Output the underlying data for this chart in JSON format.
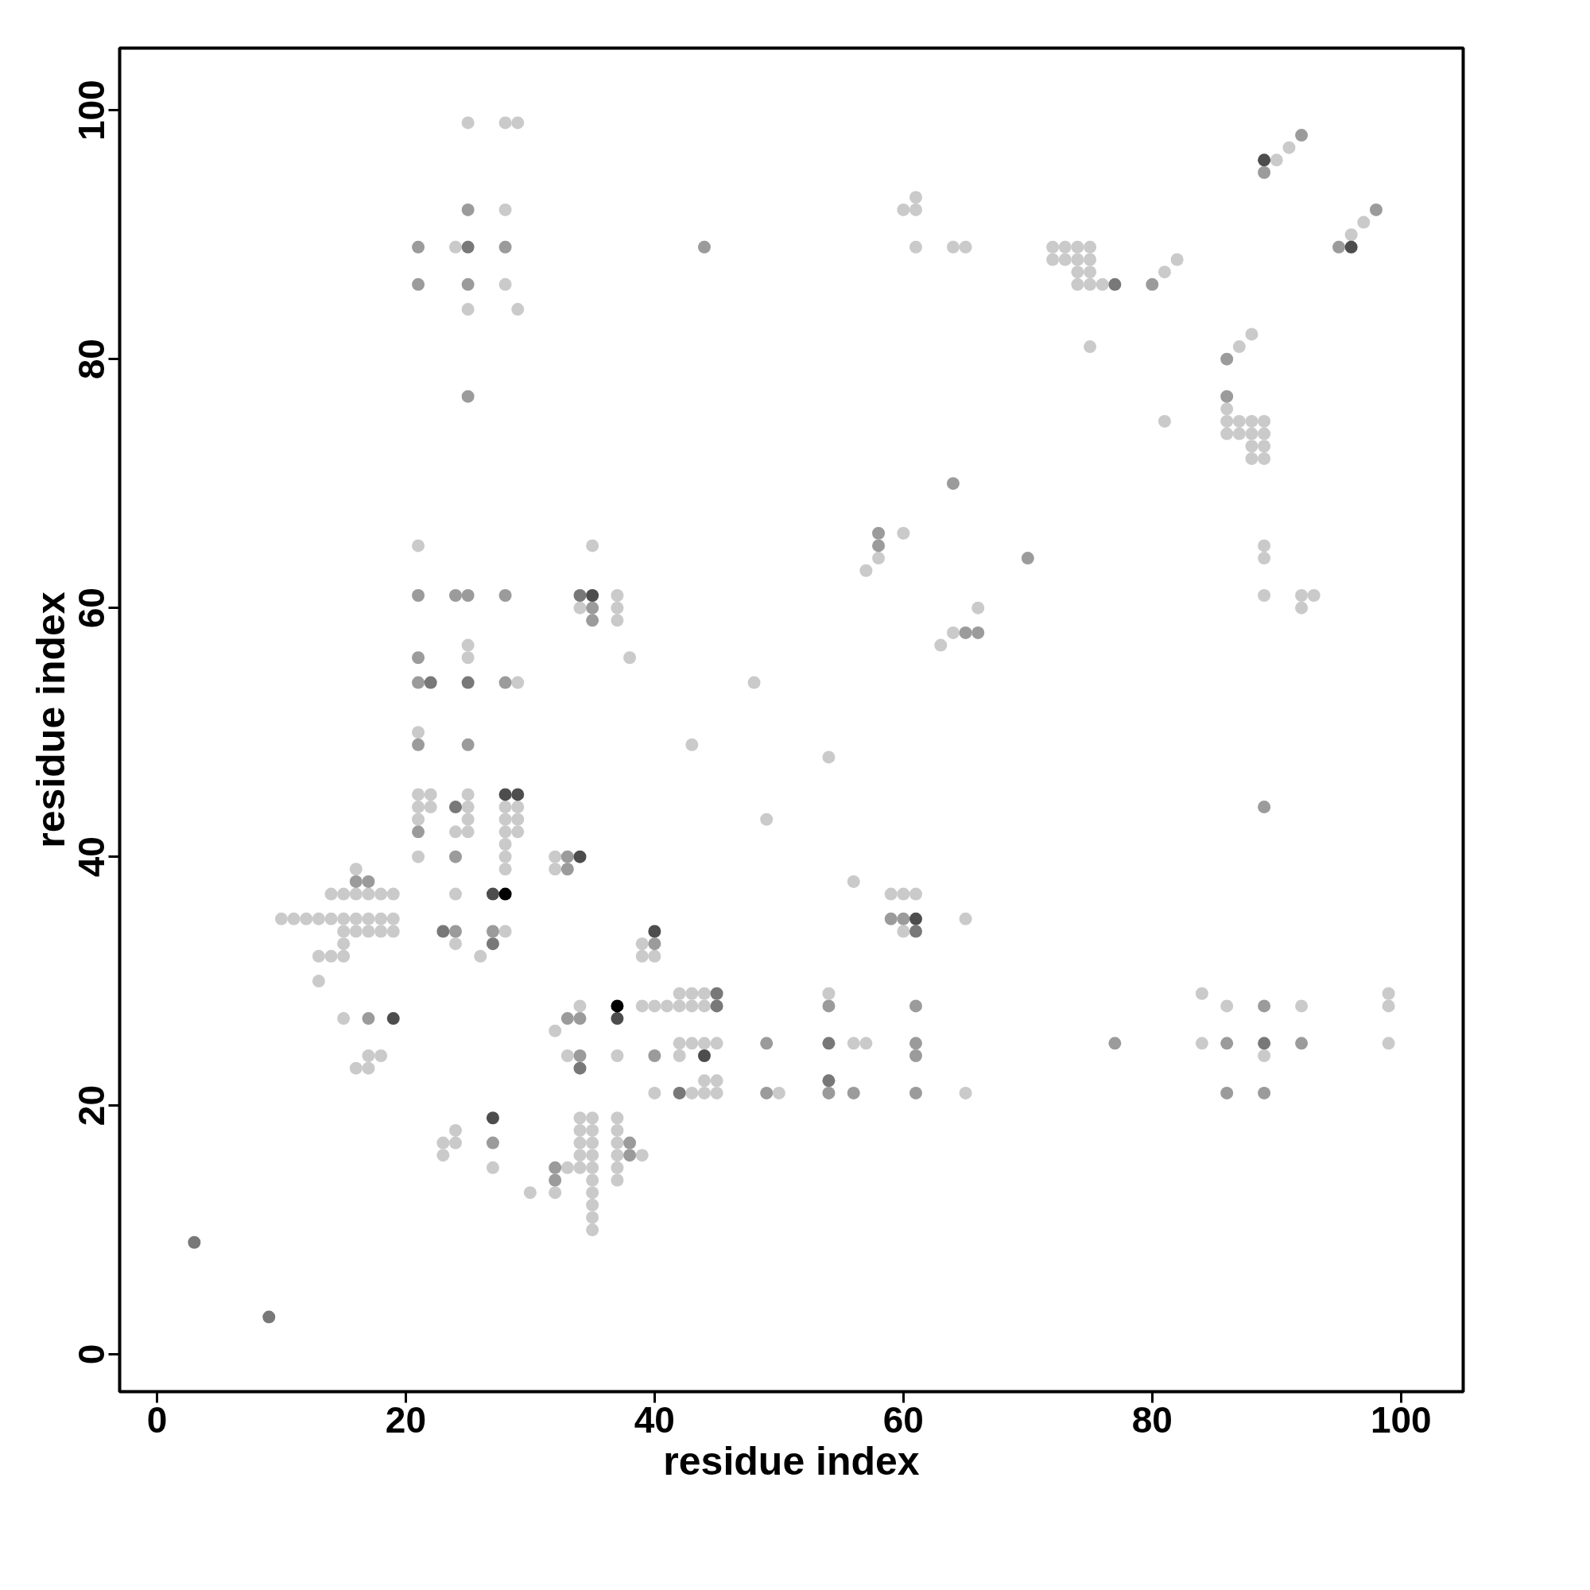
{
  "chart_data": {
    "type": "scatter",
    "xlabel": "residue index",
    "ylabel": "residue index",
    "xlim": [
      -3,
      105
    ],
    "ylim": [
      -3,
      105
    ],
    "xticks": [
      0,
      20,
      40,
      60,
      80,
      100
    ],
    "yticks": [
      0,
      20,
      40,
      60,
      80,
      100
    ],
    "grid": false,
    "marker": "circle",
    "series": [
      {
        "color": "#cacaca",
        "x": [
          25,
          28,
          29,
          28,
          24,
          28,
          25,
          29,
          60,
          61,
          61,
          61,
          64,
          65,
          72,
          73,
          74,
          75,
          72,
          73,
          74,
          75,
          74,
          75,
          74,
          75,
          76,
          81,
          82,
          75,
          90,
          91,
          96,
          97,
          87,
          88,
          81,
          86,
          86,
          87,
          88,
          89,
          86,
          87,
          88,
          89,
          88,
          89,
          88,
          89,
          89,
          89,
          89,
          92,
          93,
          92,
          60,
          58,
          57,
          66,
          64,
          63,
          48,
          43,
          54,
          49,
          21,
          25,
          25,
          29,
          34,
          35,
          37,
          37,
          37,
          38,
          21,
          21,
          22,
          25,
          21,
          22,
          25,
          28,
          29,
          21,
          25,
          28,
          29,
          24,
          25,
          28,
          29,
          28,
          21,
          28,
          32,
          28,
          32,
          16,
          14,
          15,
          16,
          17,
          18,
          19,
          24,
          10,
          11,
          12,
          13,
          14,
          15,
          16,
          17,
          18,
          19,
          15,
          16,
          17,
          18,
          19,
          28,
          15,
          24,
          13,
          14,
          15,
          26,
          13,
          15,
          32,
          17,
          18,
          16,
          17,
          34,
          33,
          24,
          23,
          24,
          23,
          27,
          30,
          33,
          32,
          56,
          59,
          60,
          61,
          65,
          60,
          39,
          39,
          40,
          42,
          43,
          44,
          54,
          39,
          40,
          41,
          42,
          43,
          44,
          42,
          43,
          44,
          45,
          56,
          57,
          37,
          42,
          44,
          45,
          40,
          43,
          44,
          45,
          50,
          65,
          34,
          35,
          37,
          34,
          35,
          37,
          34,
          35,
          37,
          34,
          35,
          37,
          39,
          34,
          35,
          37,
          35,
          37,
          35,
          35,
          35,
          35,
          84,
          86,
          92,
          99,
          99,
          84,
          99,
          89
        ],
        "values": [
          99,
          99,
          99,
          92,
          89,
          86,
          84,
          84,
          92,
          93,
          92,
          89,
          89,
          89,
          89,
          89,
          89,
          89,
          88,
          88,
          88,
          88,
          87,
          87,
          86,
          86,
          86,
          87,
          88,
          81,
          96,
          97,
          90,
          91,
          81,
          82,
          75,
          76,
          75,
          75,
          75,
          75,
          74,
          74,
          74,
          74,
          73,
          73,
          72,
          72,
          65,
          64,
          61,
          61,
          61,
          60,
          66,
          64,
          63,
          60,
          58,
          57,
          54,
          49,
          48,
          43,
          65,
          57,
          56,
          54,
          60,
          65,
          61,
          60,
          59,
          56,
          50,
          45,
          45,
          45,
          44,
          44,
          44,
          44,
          44,
          43,
          43,
          43,
          43,
          42,
          42,
          42,
          42,
          41,
          40,
          40,
          40,
          39,
          39,
          39,
          37,
          37,
          37,
          37,
          37,
          37,
          37,
          35,
          35,
          35,
          35,
          35,
          35,
          35,
          35,
          35,
          35,
          34,
          34,
          34,
          34,
          34,
          34,
          33,
          33,
          32,
          32,
          32,
          32,
          30,
          27,
          26,
          24,
          24,
          23,
          23,
          28,
          24,
          18,
          17,
          17,
          16,
          15,
          13,
          15,
          13,
          38,
          37,
          37,
          37,
          35,
          34,
          33,
          32,
          32,
          29,
          29,
          29,
          29,
          28,
          28,
          28,
          28,
          28,
          28,
          25,
          25,
          25,
          25,
          25,
          25,
          24,
          24,
          22,
          22,
          21,
          21,
          21,
          21,
          21,
          21,
          19,
          19,
          19,
          18,
          18,
          18,
          17,
          17,
          17,
          16,
          16,
          16,
          16,
          15,
          15,
          15,
          14,
          14,
          13,
          12,
          11,
          10,
          29,
          28,
          28,
          29,
          28,
          25,
          25,
          24
        ]
      },
      {
        "color": "#9b9b9b",
        "x": [
          25,
          21,
          28,
          21,
          25,
          25,
          44,
          80,
          89,
          92,
          95,
          98,
          86,
          86,
          64,
          70,
          58,
          58,
          65,
          66,
          21,
          24,
          25,
          28,
          35,
          35,
          21,
          21,
          28,
          21,
          25,
          21,
          24,
          33,
          33,
          16,
          17,
          24,
          27,
          17,
          33,
          34,
          34,
          38,
          38,
          32,
          32,
          27,
          59,
          60,
          40,
          54,
          61,
          49,
          61,
          40,
          61,
          49,
          54,
          56,
          61,
          89,
          89,
          77,
          86,
          92,
          86,
          89
        ],
        "values": [
          92,
          89,
          89,
          86,
          86,
          77,
          89,
          86,
          95,
          98,
          89,
          92,
          80,
          77,
          70,
          64,
          66,
          65,
          58,
          58,
          61,
          61,
          61,
          61,
          60,
          59,
          56,
          54,
          54,
          49,
          49,
          42,
          40,
          40,
          39,
          38,
          38,
          34,
          34,
          27,
          27,
          27,
          24,
          17,
          16,
          15,
          14,
          17,
          35,
          35,
          33,
          28,
          28,
          25,
          25,
          24,
          24,
          21,
          21,
          21,
          21,
          44,
          28,
          25,
          25,
          25,
          21,
          21
        ]
      },
      {
        "color": "#787878",
        "x": [
          25,
          77,
          25,
          22,
          34,
          24,
          23,
          27,
          34,
          9,
          3,
          45,
          45,
          61,
          42,
          54,
          54,
          89
        ],
        "values": [
          89,
          86,
          54,
          54,
          61,
          44,
          34,
          33,
          23,
          3,
          9,
          28,
          29,
          34,
          21,
          25,
          22,
          25
        ]
      },
      {
        "color": "#4d4d4d",
        "x": [
          89,
          96,
          28,
          29,
          34,
          35,
          27,
          19,
          27,
          40,
          61,
          37,
          44
        ],
        "values": [
          96,
          89,
          45,
          45,
          40,
          61,
          37,
          27,
          19,
          34,
          35,
          27,
          24
        ]
      },
      {
        "color": "#000000",
        "x": [
          28,
          37
        ],
        "values": [
          37,
          28
        ]
      }
    ]
  }
}
